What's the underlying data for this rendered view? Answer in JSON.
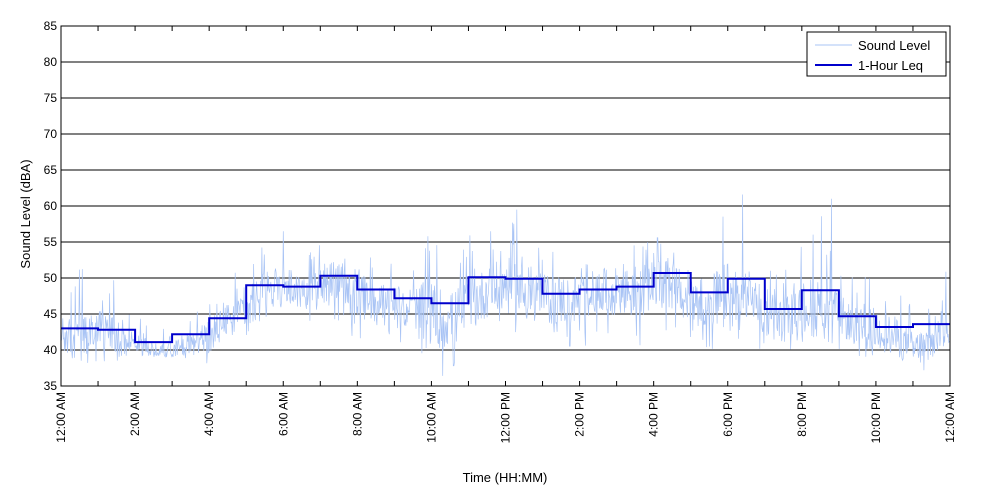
{
  "chart_data": {
    "type": "line",
    "title": "",
    "xlabel": "Time (HH:MM)",
    "ylabel": "Sound Level (dBA)",
    "ylim": [
      35,
      85
    ],
    "xlim": [
      0,
      24
    ],
    "y_ticks": [
      35,
      40,
      45,
      50,
      55,
      60,
      65,
      70,
      75,
      80,
      85
    ],
    "x_ticks": [
      {
        "hour": 0,
        "label": "12:00 AM"
      },
      {
        "hour": 2,
        "label": "2:00 AM"
      },
      {
        "hour": 4,
        "label": "4:00 AM"
      },
      {
        "hour": 6,
        "label": "6:00 AM"
      },
      {
        "hour": 8,
        "label": "8:00 AM"
      },
      {
        "hour": 10,
        "label": "10:00 AM"
      },
      {
        "hour": 12,
        "label": "12:00 PM"
      },
      {
        "hour": 14,
        "label": "2:00 PM"
      },
      {
        "hour": 16,
        "label": "4:00 PM"
      },
      {
        "hour": 18,
        "label": "6:00 PM"
      },
      {
        "hour": 20,
        "label": "8:00 PM"
      },
      {
        "hour": 22,
        "label": "10:00 PM"
      },
      {
        "hour": 24,
        "label": "12:00 AM"
      }
    ],
    "grid": {
      "horizontal": true,
      "vertical": false
    },
    "legend_position": "top-right",
    "series": [
      {
        "name": "Sound Level",
        "color": "#a9c4f5",
        "x": [
          0,
          0.5,
          1,
          1.5,
          2,
          2.5,
          3,
          3.5,
          4,
          4.5,
          5,
          5.5,
          6,
          6.5,
          7,
          7.5,
          8,
          8.5,
          9,
          9.5,
          10,
          10.5,
          11,
          11.5,
          12,
          12.5,
          13,
          13.5,
          14,
          14.5,
          15,
          15.5,
          16,
          16.5,
          17,
          17.5,
          18,
          18.5,
          19,
          19.5,
          20,
          20.5,
          21,
          21.5,
          22,
          22.5,
          23,
          23.5,
          24
        ],
        "y": [
          42,
          41,
          43,
          42,
          41,
          40,
          40,
          41,
          42,
          44,
          46,
          48,
          49,
          48,
          49,
          50,
          48,
          46,
          46,
          46,
          45,
          44,
          46,
          48,
          49,
          48,
          47,
          47,
          47,
          48,
          48,
          48,
          49,
          49,
          46,
          47,
          47,
          48,
          45,
          44,
          46,
          46,
          45,
          43,
          43,
          42,
          40,
          41,
          44
        ],
        "range_low": [
          38,
          38,
          38,
          38,
          39,
          39,
          39,
          38,
          38,
          40,
          42,
          44,
          44,
          44,
          44,
          44,
          40,
          42,
          41,
          41,
          38,
          36,
          40,
          41,
          43,
          40,
          40,
          40,
          40,
          40,
          40,
          40,
          41,
          41,
          39,
          40,
          40,
          40,
          39,
          39,
          41,
          41,
          40,
          39,
          39,
          38,
          37,
          38,
          39
        ],
        "range_high": [
          48,
          52,
          48,
          51,
          45,
          43,
          43,
          45,
          48,
          50,
          54,
          55,
          56,
          54,
          55,
          55,
          54,
          53,
          53,
          52,
          56,
          52,
          56,
          55,
          59,
          56,
          54,
          54,
          54,
          53,
          54,
          55,
          55,
          55,
          53,
          55,
          61,
          54,
          52,
          51,
          55,
          60,
          51,
          50,
          51,
          49,
          47,
          48,
          52
        ],
        "spikes": [
          [
            12.3,
            59.5
          ],
          [
            18.4,
            61.6
          ],
          [
            20.8,
            61
          ],
          [
            6.0,
            56.5
          ],
          [
            11.6,
            56.5
          ],
          [
            9.9,
            55.8
          ],
          [
            16.1,
            55.6
          ],
          [
            10.3,
            36.4
          ],
          [
            23.3,
            37.2
          ],
          [
            10.6,
            37.8
          ]
        ]
      },
      {
        "name": "1-Hour Leq",
        "color": "#0000cc",
        "type": "step",
        "hours": [
          0,
          1,
          2,
          3,
          4,
          5,
          6,
          7,
          8,
          9,
          10,
          11,
          12,
          13,
          14,
          15,
          16,
          17,
          18,
          19,
          20,
          21,
          22,
          23
        ],
        "values": [
          43,
          42.8,
          41.1,
          42.2,
          44.4,
          49,
          48.8,
          50.3,
          48.4,
          47.2,
          46.5,
          50.1,
          49.9,
          47.8,
          48.4,
          48.8,
          50.7,
          48,
          49.9,
          45.7,
          48.3,
          44.7,
          43.2,
          43.6
        ]
      }
    ]
  }
}
